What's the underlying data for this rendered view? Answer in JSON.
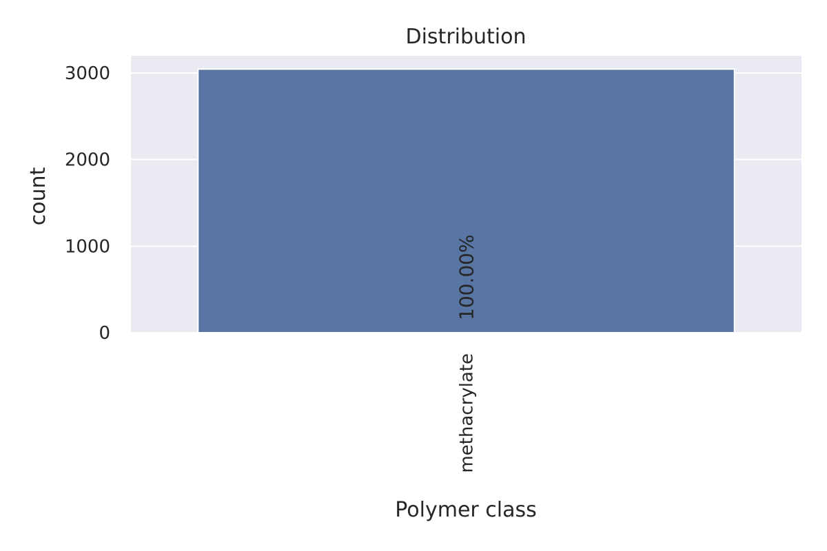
{
  "chart_data": {
    "type": "bar",
    "title": "Distribution",
    "xlabel": "Polymer class",
    "ylabel": "count",
    "categories": [
      "methacrylate"
    ],
    "values": [
      3045
    ],
    "bar_labels": [
      "100.00%"
    ],
    "yticks": [
      0,
      1000,
      2000,
      3000
    ],
    "ytick_labels": [
      "0",
      "1000",
      "2000",
      "3000"
    ],
    "ylim": [
      0,
      3200
    ],
    "grid": true,
    "bar_color": "#5875a4",
    "background_color": "#eaeaf2",
    "grid_color": "#ffffff"
  }
}
